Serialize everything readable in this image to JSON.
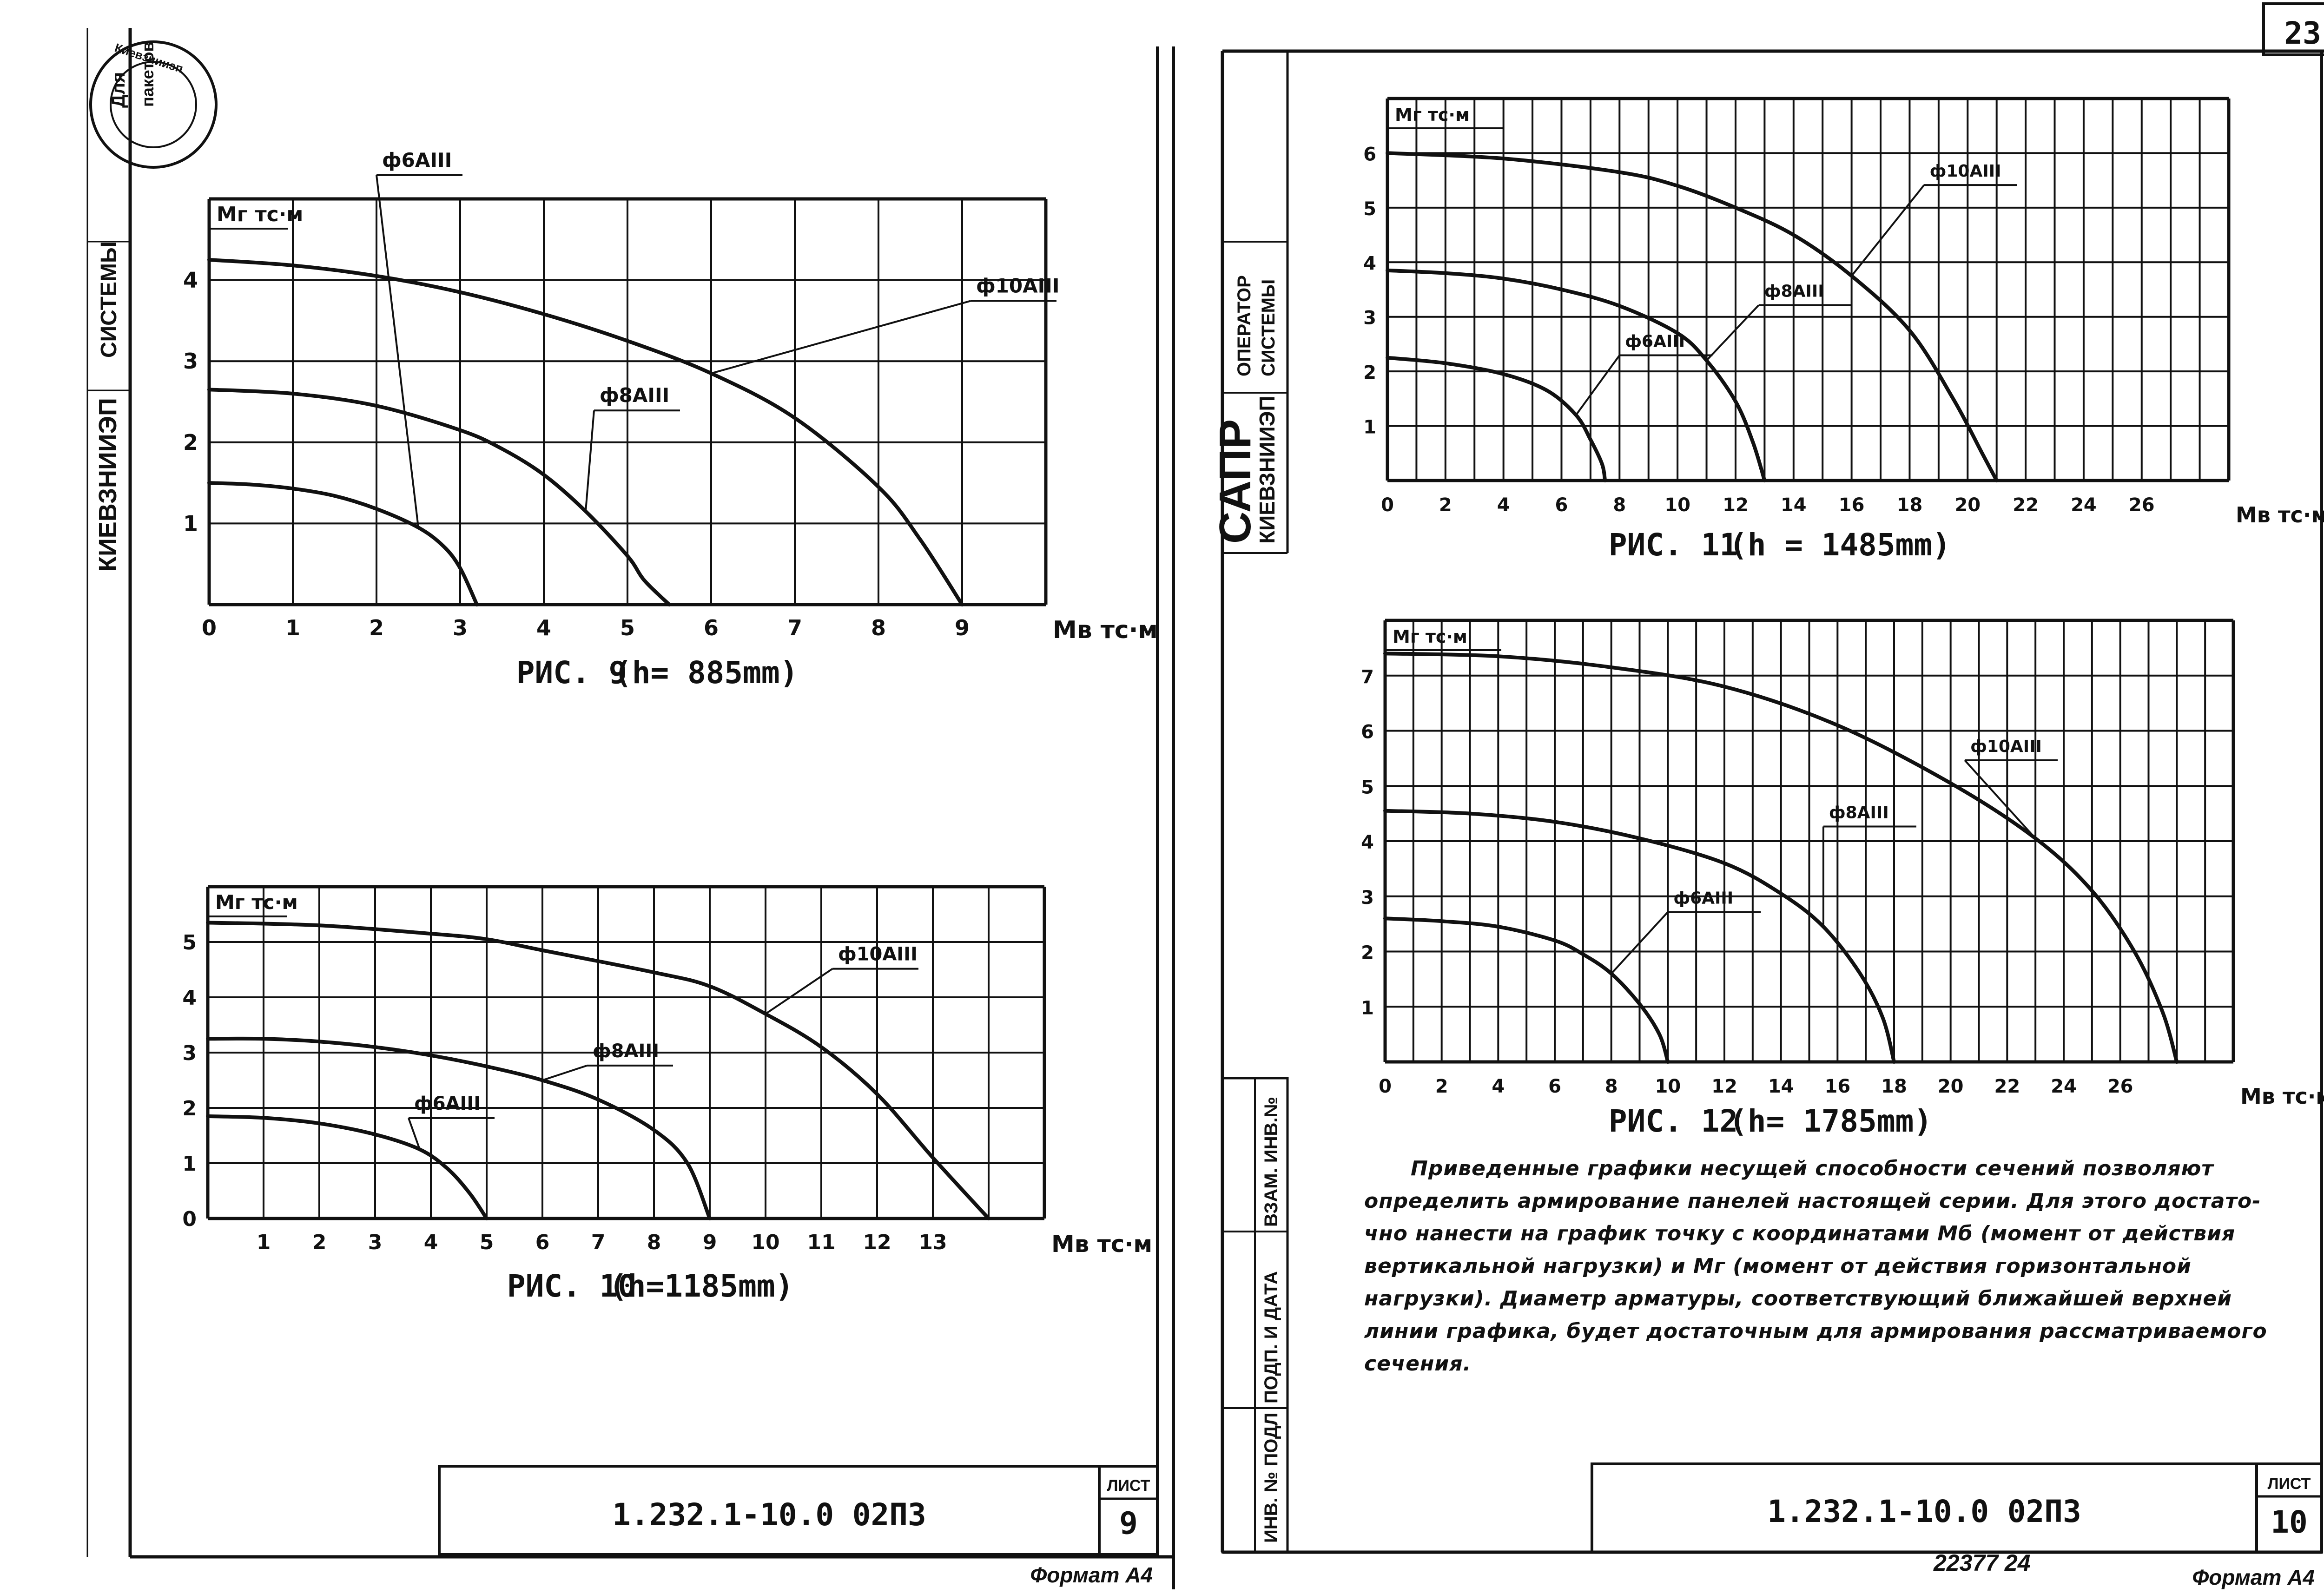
{
  "sheet_number": "23",
  "left_sheet": {
    "stamp": {
      "words": [
        "Для",
        "пакетов"
      ],
      "ring_text": "Киевзнииэп"
    },
    "side_labels": {
      "institute": "КИЕВЗНИИЭП",
      "system": "СИСТЕМЫ"
    },
    "title_block": {
      "code": "1.232.1-10.0 02ПЗ",
      "sheet_label": "ЛИСТ",
      "sheet_no": "9"
    },
    "format": "Формат А4"
  },
  "right_sheet": {
    "side_labels": {
      "sapr": "САПР",
      "institute": "КИЕВЗНИИЭП",
      "operator": "ОПЕРАТОР",
      "system": "СИСТЕМЫ",
      "inv_cols": [
        "ИНВ. № ПОДЛ",
        "ПОДП. И ДАТА",
        "ВЗАМ. ИНВ.№"
      ]
    },
    "title_block": {
      "code": "1.232.1-10.0 02ПЗ",
      "sheet_label": "ЛИСТ",
      "sheet_no": "10"
    },
    "format": "Формат А4",
    "archive_number": "22377   24",
    "note_lines": [
      "Приведенные графики несущей способности сечений позволяют",
      "определить армирование панелей настоящей серии. Для этого достато-",
      "чно нанести на график точку с координатами Мб (момент от действия",
      "вертикальной нагрузки) и Мг (момент от действия горизонтальной",
      "нагрузки). Диаметр арматуры, соответствующий ближайшей верхней",
      "линии графика, будет достаточным для армирования рассматриваемого",
      "сечения."
    ]
  },
  "chart_data": [
    {
      "type": "line",
      "title": "РИС. 9",
      "subtitle": "(h= 885mm)",
      "ylabel": "Мг тс·м",
      "xlabel": "Мв тс·м",
      "xlim": [
        0,
        10
      ],
      "ylim": [
        0,
        5
      ],
      "x_ticks": [
        "0",
        "1",
        "2",
        "3",
        "4",
        "5",
        "6",
        "7",
        "8",
        "9"
      ],
      "y_ticks": [
        "1",
        "2",
        "3",
        "4"
      ],
      "grid": true,
      "series": [
        {
          "name": "ф6АIII",
          "points": [
            [
              0,
              1.5
            ],
            [
              0.5,
              1.48
            ],
            [
              1,
              1.43
            ],
            [
              1.5,
              1.34
            ],
            [
              2,
              1.18
            ],
            [
              2.5,
              0.95
            ],
            [
              2.8,
              0.72
            ],
            [
              3.0,
              0.45
            ],
            [
              3.2,
              0.0
            ]
          ]
        },
        {
          "name": "ф8АIII",
          "points": [
            [
              0,
              2.65
            ],
            [
              1,
              2.6
            ],
            [
              2,
              2.45
            ],
            [
              3,
              2.15
            ],
            [
              3.5,
              1.92
            ],
            [
              4,
              1.6
            ],
            [
              4.5,
              1.15
            ],
            [
              5,
              0.6
            ],
            [
              5.2,
              0.3
            ],
            [
              5.5,
              0.0
            ]
          ]
        },
        {
          "name": "ф10АIII",
          "points": [
            [
              0,
              4.25
            ],
            [
              1,
              4.18
            ],
            [
              2,
              4.05
            ],
            [
              3,
              3.85
            ],
            [
              4,
              3.58
            ],
            [
              5,
              3.25
            ],
            [
              6,
              2.85
            ],
            [
              7,
              2.3
            ],
            [
              8,
              1.45
            ],
            [
              8.5,
              0.8
            ],
            [
              9,
              0.0
            ]
          ]
        }
      ]
    },
    {
      "type": "line",
      "title": "РИС. 10",
      "subtitle": "(h=1185mm)",
      "ylabel": "Мг тс·м",
      "xlabel": "Мв тс·м",
      "xlim": [
        0,
        15
      ],
      "ylim": [
        0,
        6
      ],
      "x_ticks": [
        "1",
        "2",
        "3",
        "4",
        "5",
        "6",
        "7",
        "8",
        "9",
        "10",
        "11",
        "12",
        "13"
      ],
      "y_ticks": [
        "0",
        "1",
        "2",
        "3",
        "4",
        "5"
      ],
      "grid": true,
      "series": [
        {
          "name": "ф6АIII",
          "points": [
            [
              0,
              1.85
            ],
            [
              1,
              1.82
            ],
            [
              2,
              1.72
            ],
            [
              3,
              1.52
            ],
            [
              3.8,
              1.25
            ],
            [
              4.3,
              0.9
            ],
            [
              4.7,
              0.45
            ],
            [
              5,
              0.0
            ]
          ]
        },
        {
          "name": "ф8АIII",
          "points": [
            [
              0,
              3.25
            ],
            [
              1,
              3.25
            ],
            [
              2,
              3.2
            ],
            [
              3,
              3.1
            ],
            [
              4,
              2.95
            ],
            [
              5,
              2.75
            ],
            [
              6,
              2.5
            ],
            [
              7,
              2.15
            ],
            [
              8,
              1.6
            ],
            [
              8.6,
              1.0
            ],
            [
              9,
              0.0
            ]
          ]
        },
        {
          "name": "ф10АIII",
          "points": [
            [
              0,
              5.35
            ],
            [
              2,
              5.3
            ],
            [
              4,
              5.15
            ],
            [
              5,
              5.05
            ],
            [
              6,
              4.85
            ],
            [
              8,
              4.45
            ],
            [
              9,
              4.2
            ],
            [
              10,
              3.7
            ],
            [
              11,
              3.1
            ],
            [
              12,
              2.25
            ],
            [
              13,
              1.1
            ],
            [
              14,
              0.0
            ]
          ]
        }
      ]
    },
    {
      "type": "line",
      "title": "РИС. 11",
      "subtitle": "(h = 1485mm)",
      "ylabel": "Мг тс·м",
      "xlabel": "Мв тс·м",
      "xlim": [
        0,
        29
      ],
      "ylim": [
        0,
        7
      ],
      "x_ticks": [
        "0",
        "2",
        "4",
        "6",
        "8",
        "10",
        "12",
        "14",
        "16",
        "18",
        "20",
        "22",
        "24",
        "26"
      ],
      "y_ticks": [
        "1",
        "2",
        "3",
        "4",
        "5",
        "6"
      ],
      "grid": true,
      "series": [
        {
          "name": "ф6АIII",
          "points": [
            [
              0,
              2.25
            ],
            [
              2,
              2.15
            ],
            [
              4,
              1.95
            ],
            [
              5.5,
              1.65
            ],
            [
              6.5,
              1.2
            ],
            [
              7,
              0.75
            ],
            [
              7.4,
              0.3
            ],
            [
              7.5,
              0.0
            ]
          ]
        },
        {
          "name": "ф8АIII",
          "points": [
            [
              0,
              3.85
            ],
            [
              2,
              3.8
            ],
            [
              4,
              3.7
            ],
            [
              6,
              3.5
            ],
            [
              8,
              3.2
            ],
            [
              10,
              2.7
            ],
            [
              11,
              2.2
            ],
            [
              12,
              1.45
            ],
            [
              12.6,
              0.7
            ],
            [
              13,
              0.0
            ]
          ]
        },
        {
          "name": "ф10АIII",
          "points": [
            [
              0,
              6.0
            ],
            [
              4,
              5.9
            ],
            [
              8,
              5.65
            ],
            [
              10,
              5.4
            ],
            [
              12,
              5.0
            ],
            [
              14,
              4.5
            ],
            [
              16,
              3.75
            ],
            [
              18,
              2.75
            ],
            [
              19.5,
              1.5
            ],
            [
              20.5,
              0.5
            ],
            [
              21,
              0.0
            ]
          ]
        }
      ]
    },
    {
      "type": "line",
      "title": "РИС. 12",
      "subtitle": "(h= 1785mm)",
      "ylabel": "Мг тс·м",
      "xlabel": "Мв тс·м",
      "xlim": [
        0,
        30
      ],
      "ylim": [
        0,
        8
      ],
      "x_ticks": [
        "0",
        "2",
        "4",
        "6",
        "8",
        "10",
        "12",
        "14",
        "16",
        "18",
        "20",
        "22",
        "24",
        "26"
      ],
      "y_ticks": [
        "1",
        "2",
        "3",
        "4",
        "5",
        "6",
        "7"
      ],
      "grid": true,
      "series": [
        {
          "name": "ф6АIII",
          "points": [
            [
              0,
              2.6
            ],
            [
              2,
              2.55
            ],
            [
              4,
              2.45
            ],
            [
              6,
              2.2
            ],
            [
              7,
              1.95
            ],
            [
              8,
              1.6
            ],
            [
              9,
              1.05
            ],
            [
              9.7,
              0.5
            ],
            [
              10,
              0.0
            ]
          ]
        },
        {
          "name": "ф8АIII",
          "points": [
            [
              0,
              4.55
            ],
            [
              3,
              4.5
            ],
            [
              6,
              4.35
            ],
            [
              9,
              4.05
            ],
            [
              12,
              3.6
            ],
            [
              14,
              3.05
            ],
            [
              15.5,
              2.45
            ],
            [
              16.8,
              1.6
            ],
            [
              17.6,
              0.8
            ],
            [
              18,
              0.0
            ]
          ]
        },
        {
          "name": "ф10АIII",
          "points": [
            [
              0,
              7.4
            ],
            [
              4,
              7.35
            ],
            [
              8,
              7.15
            ],
            [
              12,
              6.8
            ],
            [
              16,
              6.1
            ],
            [
              20,
              5.05
            ],
            [
              23,
              4.05
            ],
            [
              25,
              3.1
            ],
            [
              26.5,
              2.0
            ],
            [
              27.5,
              0.9
            ],
            [
              28,
              0.0
            ]
          ]
        }
      ]
    }
  ]
}
